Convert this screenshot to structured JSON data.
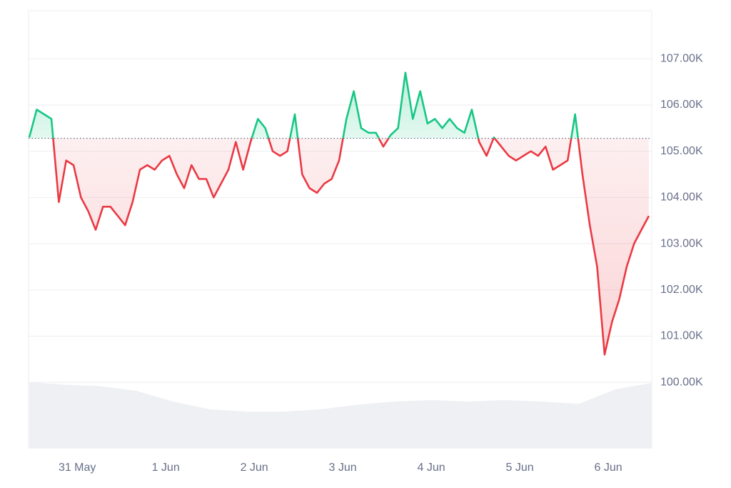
{
  "chart_data": {
    "type": "line",
    "x": [
      11,
      13,
      15,
      17,
      19,
      21,
      23,
      25,
      27,
      29,
      31,
      33,
      35,
      37,
      39,
      41,
      43,
      45,
      47,
      49,
      51,
      53,
      55,
      57,
      59,
      61,
      63,
      65,
      67,
      69,
      71,
      73,
      75,
      77,
      79,
      81,
      83,
      85,
      87,
      89,
      91,
      93,
      95,
      97,
      99,
      101,
      103,
      105,
      107,
      109,
      111,
      113,
      115,
      117,
      119,
      121,
      123,
      125,
      127,
      129,
      131,
      133,
      135,
      137,
      139,
      141,
      143,
      145,
      147,
      149,
      151,
      153,
      155,
      157,
      159,
      161,
      163,
      165,
      167,
      169,
      171,
      173,
      175,
      177,
      179
    ],
    "values": [
      105300,
      105900,
      105800,
      105700,
      103900,
      104800,
      104700,
      104000,
      103700,
      103300,
      103800,
      103800,
      103600,
      103400,
      103900,
      104600,
      104700,
      104600,
      104800,
      104900,
      104500,
      104200,
      104700,
      104400,
      104400,
      104000,
      104300,
      104600,
      105200,
      104600,
      105200,
      105700,
      105500,
      105000,
      104900,
      105000,
      105800,
      104500,
      104200,
      104100,
      104300,
      104400,
      104800,
      105700,
      106300,
      105500,
      105400,
      105400,
      105100,
      105350,
      105500,
      106700,
      105700,
      106300,
      105600,
      105700,
      105500,
      105700,
      105500,
      105400,
      105900,
      105200,
      104900,
      105300,
      105100,
      104900,
      104800,
      104900,
      105000,
      104900,
      105100,
      104600,
      104700,
      104800,
      105800,
      104500,
      103400,
      102500,
      100600,
      101300,
      101800,
      102500,
      103000,
      103300,
      103600
    ],
    "reference_value": 105280,
    "up_color": "#16c784",
    "down_color": "#ea3943",
    "xlim": [
      10.8,
      179.8
    ],
    "xticks": [
      {
        "value": 24,
        "label": "31 May"
      },
      {
        "value": 48,
        "label": "1 Jun"
      },
      {
        "value": 72,
        "label": "2 Jun"
      },
      {
        "value": 96,
        "label": "3 Jun"
      },
      {
        "value": 120,
        "label": "4 Jun"
      },
      {
        "value": 144,
        "label": "5 Jun"
      },
      {
        "value": 168,
        "label": "6 Jun"
      }
    ],
    "ylim": [
      98580,
      108040
    ],
    "yticks": [
      {
        "value": 100000,
        "label": "100.00K"
      },
      {
        "value": 101000,
        "label": "101.00K"
      },
      {
        "value": 102000,
        "label": "102.00K"
      },
      {
        "value": 103000,
        "label": "103.00K"
      },
      {
        "value": 104000,
        "label": "104.00K"
      },
      {
        "value": 105000,
        "label": "105.00K"
      },
      {
        "value": 106000,
        "label": "106.00K"
      },
      {
        "value": 107000,
        "label": "107.00K"
      }
    ],
    "grid": true,
    "volume": {
      "x": [
        11,
        20,
        30,
        40,
        50,
        60,
        70,
        80,
        90,
        100,
        110,
        120,
        130,
        140,
        150,
        160,
        170,
        179.8
      ],
      "values": [
        85,
        82,
        80,
        74,
        60,
        50,
        47,
        47,
        50,
        56,
        60,
        62,
        60,
        62,
        60,
        57,
        76,
        84
      ],
      "color": "#eef0f3"
    }
  }
}
